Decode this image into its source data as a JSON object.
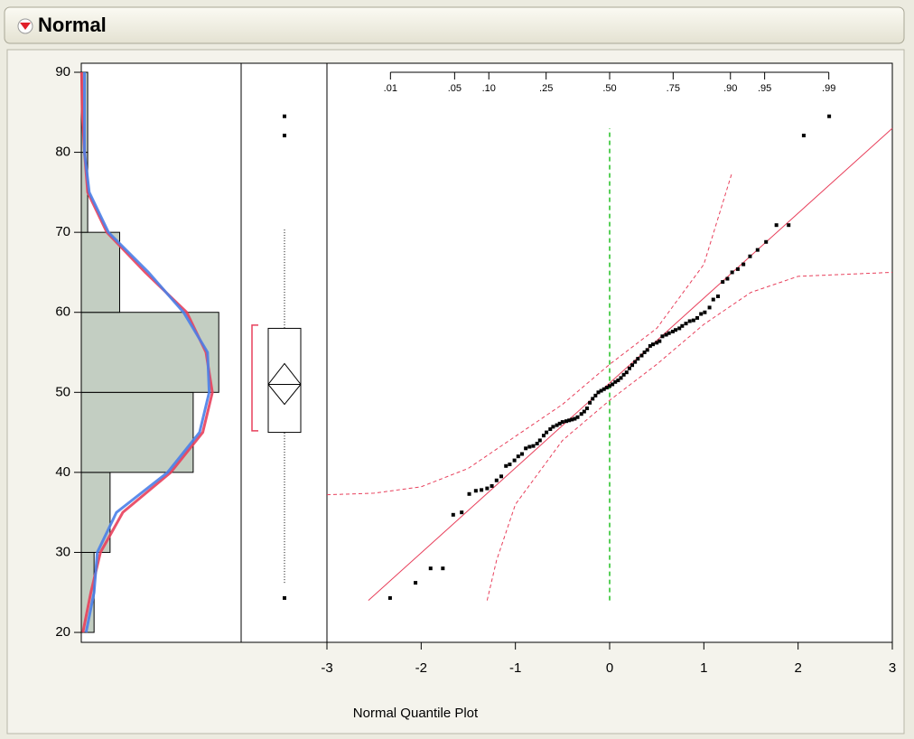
{
  "header": {
    "title": "Normal"
  },
  "chart_data": [
    {
      "type": "histogram",
      "orientation": "horizontal",
      "bins": [
        20,
        30,
        40,
        50,
        60,
        70,
        80,
        90
      ],
      "values": [
        4,
        9,
        35,
        43,
        12,
        2,
        2
      ],
      "color": "#c3cec2",
      "xlim": [
        0,
        50
      ],
      "ylim": [
        18.76,
        91.13
      ],
      "yticks": [
        20,
        30,
        40,
        50,
        60,
        70,
        80,
        90
      ],
      "curves": [
        {
          "color": "#e8405c",
          "y": [
            20,
            25,
            30,
            35,
            40,
            45,
            50,
            55,
            60,
            65,
            70,
            75,
            80,
            85,
            90
          ],
          "values": [
            0.5,
            3,
            6,
            13,
            28,
            38,
            41,
            39,
            33,
            20,
            8,
            2,
            1,
            0.3,
            0.1
          ]
        },
        {
          "color": "#4a7fe8",
          "y": [
            20,
            25,
            30,
            35,
            40,
            45,
            50,
            55,
            60,
            65,
            70,
            75,
            80,
            85,
            90
          ],
          "values": [
            1.5,
            4,
            5,
            11,
            27,
            37,
            40,
            39.5,
            32,
            21,
            8.5,
            2.5,
            1,
            1,
            1
          ]
        }
      ]
    },
    {
      "type": "box",
      "ylim": [
        18.76,
        91.13
      ],
      "whisker_low": 26.2,
      "q1": 45,
      "median": 51,
      "q3": 58,
      "whisker_high": 70.5,
      "mean": 51,
      "mean_ci": [
        48.5,
        53.6
      ],
      "shortest_half": [
        45.2,
        58.4
      ],
      "outliers": [
        24.3,
        82.1,
        84.5
      ],
      "shortest_half_color": "#e8405c"
    },
    {
      "type": "scatter",
      "x_label": "Normal Quantile Plot",
      "xlim": [
        -3,
        3
      ],
      "xticks": [
        -3,
        -2,
        -1,
        0,
        1,
        2,
        3
      ],
      "ylim": [
        18.76,
        91.13
      ],
      "top_ticks": [
        {
          "value": -2.326,
          "label": ".01"
        },
        {
          "value": -1.645,
          "label": ".05"
        },
        {
          "value": -1.282,
          "label": ".10"
        },
        {
          "value": -0.674,
          "label": ".25"
        },
        {
          "value": 0,
          "label": ".50"
        },
        {
          "value": 0.674,
          "label": ".75"
        },
        {
          "value": 1.282,
          "label": ".90"
        },
        {
          "value": 1.645,
          "label": ".95"
        },
        {
          "value": 2.326,
          "label": ".99"
        }
      ],
      "x": [
        -2.33,
        -2.06,
        -1.9,
        -1.77,
        -1.66,
        -1.57,
        -1.49,
        -1.42,
        -1.36,
        -1.3,
        -1.25,
        -1.2,
        -1.15,
        -1.1,
        -1.06,
        -1.01,
        -0.97,
        -0.93,
        -0.89,
        -0.85,
        -0.81,
        -0.77,
        -0.74,
        -0.7,
        -0.67,
        -0.63,
        -0.6,
        -0.56,
        -0.53,
        -0.5,
        -0.46,
        -0.43,
        -0.4,
        -0.37,
        -0.34,
        -0.3,
        -0.27,
        -0.24,
        -0.21,
        -0.18,
        -0.15,
        -0.12,
        -0.09,
        -0.06,
        -0.03,
        0,
        0.03,
        0.06,
        0.09,
        0.12,
        0.15,
        0.18,
        0.21,
        0.24,
        0.27,
        0.3,
        0.34,
        0.37,
        0.4,
        0.43,
        0.46,
        0.5,
        0.53,
        0.56,
        0.6,
        0.63,
        0.67,
        0.7,
        0.74,
        0.77,
        0.81,
        0.85,
        0.89,
        0.93,
        0.97,
        1.01,
        1.06,
        1.1,
        1.15,
        1.2,
        1.25,
        1.3,
        1.36,
        1.42,
        1.49,
        1.57,
        1.66,
        1.77,
        1.9,
        2.06,
        2.33
      ],
      "values": [
        24.3,
        26.2,
        28,
        28,
        34.7,
        35,
        37.3,
        37.7,
        37.8,
        38,
        38.3,
        39,
        39.5,
        40.8,
        41,
        41.5,
        42,
        42.3,
        43,
        43.2,
        43.3,
        43.6,
        44,
        44.6,
        45,
        45.4,
        45.7,
        45.9,
        46.1,
        46.3,
        46.4,
        46.5,
        46.6,
        46.7,
        46.9,
        47.3,
        47.6,
        48,
        48.7,
        49.2,
        49.6,
        50,
        50.2,
        50.4,
        50.6,
        50.8,
        51,
        51.3,
        51.5,
        51.8,
        52.2,
        52.5,
        53,
        53.4,
        53.8,
        54.2,
        54.6,
        55,
        55.3,
        55.8,
        56,
        56.2,
        56.4,
        57,
        57.2,
        57.4,
        57.6,
        57.8,
        58,
        58.3,
        58.6,
        58.9,
        59,
        59.3,
        59.8,
        60,
        60.6,
        61.6,
        62,
        63.8,
        64.2,
        65,
        65.4,
        66,
        67,
        67.8,
        68.8,
        70.9,
        70.9,
        82.1,
        84.5
      ],
      "color": "#000000",
      "fit_line": {
        "color": "#e8405c",
        "x": [
          -2.56,
          3
        ],
        "y": [
          24,
          83
        ]
      },
      "bands": [
        {
          "color": "#e8405c",
          "x": [
            -3,
            -2.5,
            -2,
            -1.5,
            -1,
            -0.5,
            0,
            0.5,
            1,
            1.3
          ],
          "y": [
            37.2,
            37.4,
            38.2,
            40.5,
            44.5,
            48.5,
            53.5,
            58,
            66,
            77.5
          ]
        },
        {
          "color": "#e8405c",
          "x": [
            -1.3,
            -1.2,
            -1,
            -0.5,
            0,
            0.5,
            1,
            1.5,
            2,
            3
          ],
          "y": [
            24,
            29,
            36,
            44,
            49,
            53.5,
            58.5,
            62.5,
            64.5,
            65
          ]
        }
      ],
      "reference_x": 0,
      "reference_color": "#22c022",
      "reference_ylim": [
        24,
        83
      ]
    }
  ]
}
